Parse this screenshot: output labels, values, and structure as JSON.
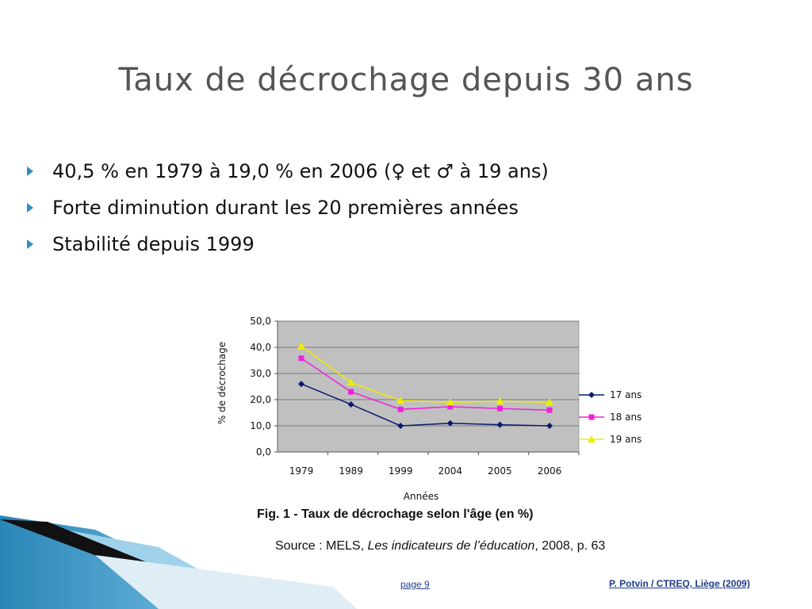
{
  "slide": {
    "title": "Taux de décrochage depuis 30 ans",
    "bullets": [
      "40,5 % en 1979 à 19,0 % en 2006 (♀ et ♂ à 19 ans)",
      "Forte diminution durant les 20 premières années",
      "Stabilité depuis 1999"
    ],
    "caption": "Fig. 1 - Taux de décrochage selon l'âge (en %)",
    "source_prefix": "Source : MELS, ",
    "source_title": "Les indicateurs de l’éducation",
    "source_suffix": ", 2008, p. 63",
    "page": "page 9",
    "credit": "P. Potvin / CTREQ, Liège (2009)"
  },
  "chart_data": {
    "type": "line",
    "categories": [
      "1979",
      "1989",
      "1999",
      "2004",
      "2005",
      "2006"
    ],
    "xlabel": "Années",
    "ylabel": "% de décrochage",
    "ylim": [
      0,
      50
    ],
    "yticks": [
      "0,0",
      "10,0",
      "20,0",
      "30,0",
      "40,0",
      "50,0"
    ],
    "grid": true,
    "legend": "right",
    "plot_background": "#c0c0c0",
    "series": [
      {
        "name": "17 ans",
        "values": [
          26.0,
          18.2,
          10.0,
          11.0,
          10.4,
          10.0
        ],
        "color": "#0a1a6e",
        "marker": "diamond"
      },
      {
        "name": "18 ans",
        "values": [
          35.8,
          23.0,
          16.3,
          17.3,
          16.6,
          16.0
        ],
        "color": "#ee22dd",
        "marker": "square"
      },
      {
        "name": "19 ans",
        "values": [
          40.5,
          26.6,
          19.6,
          19.0,
          19.4,
          19.0
        ],
        "color": "#eeee00",
        "marker": "triangle"
      }
    ]
  },
  "colors": {
    "title": "#555555",
    "bullet_arrow": "#2f8fbf",
    "footer_text": "#1f3c88"
  }
}
